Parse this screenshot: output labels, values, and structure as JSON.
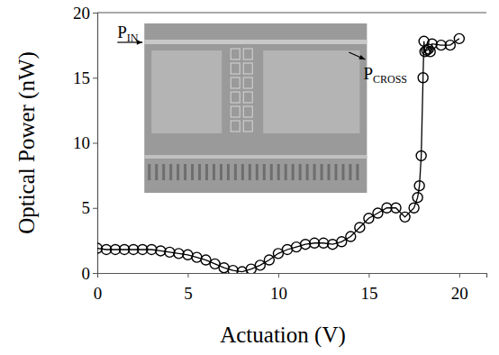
{
  "chart_data": {
    "type": "line",
    "x_label": "Actuation (V)",
    "y_label": "Optical Power (nW)",
    "x": [
      0,
      0.5,
      1,
      1.5,
      2,
      2.5,
      3,
      3.5,
      4,
      4.5,
      5,
      5.5,
      6,
      6.5,
      7,
      7.5,
      8,
      8.5,
      9,
      9.5,
      10,
      10.5,
      11,
      11.5,
      12,
      12.5,
      13,
      13.5,
      14,
      14.5,
      15,
      15.5,
      16,
      16.5,
      17,
      17.5,
      17.7,
      17.8,
      17.9,
      18,
      18.05,
      18.1,
      18.2,
      18.3,
      18.4,
      18.5,
      19,
      19.5,
      20
    ],
    "series": [
      {
        "color": "#000000",
        "marker": "circle",
        "line_style": "solid",
        "values": [
          1.9,
          1.8,
          1.8,
          1.8,
          1.8,
          1.8,
          1.8,
          1.7,
          1.6,
          1.5,
          1.4,
          1.2,
          1.0,
          0.7,
          0.4,
          0.2,
          0.1,
          0.3,
          0.6,
          1.0,
          1.5,
          1.8,
          2.0,
          2.2,
          2.3,
          2.3,
          2.2,
          2.4,
          2.8,
          3.5,
          4.2,
          4.6,
          5.0,
          5.0,
          4.3,
          5.0,
          5.8,
          6.7,
          9.0,
          15.0,
          17.8,
          17.0,
          17.1,
          17.2,
          17.0,
          17.6,
          17.5,
          17.5,
          18.0
        ]
      }
    ],
    "xlim": [
      0,
      21.5
    ],
    "xticks": [
      0,
      5,
      10,
      15,
      20
    ],
    "ylim": [
      0,
      20
    ],
    "yticks": [
      0,
      5,
      10,
      15,
      20
    ],
    "grid": false,
    "annotations": [
      {
        "text": "P",
        "subscript": "IN"
      },
      {
        "text": "P",
        "subscript": "CROSS"
      }
    ]
  }
}
